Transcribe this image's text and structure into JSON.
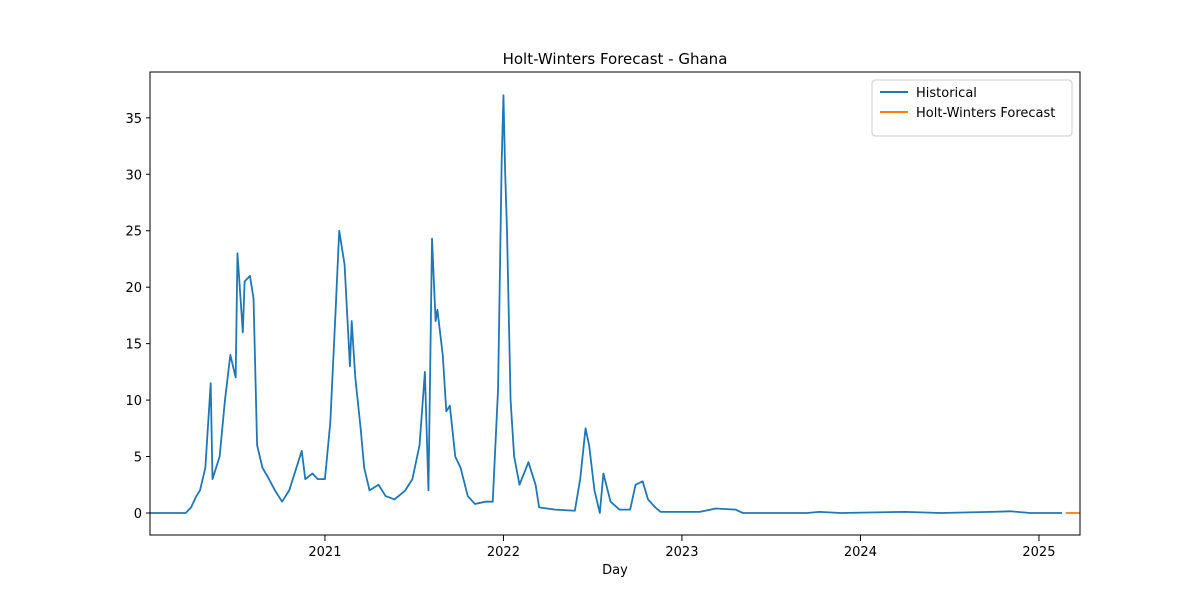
{
  "chart_data": {
    "type": "line",
    "title": "Holt-Winters Forecast - Ghana",
    "x_label": "Day",
    "xlim": [
      2020.02,
      2025.23
    ],
    "xticks": [
      2021,
      2022,
      2023,
      2024,
      2025
    ],
    "ylim": [
      -1.95,
      39.06
    ],
    "yticks": [
      0,
      5,
      10,
      15,
      20,
      25,
      30,
      35
    ],
    "legend": "upper right",
    "grid": false,
    "series": [
      {
        "name": "Historical",
        "color": "#1f77b4",
        "x": [
          2020.02,
          2020.22,
          2020.25,
          2020.28,
          2020.3,
          2020.33,
          2020.36,
          2020.37,
          2020.41,
          2020.44,
          2020.47,
          2020.5,
          2020.51,
          2020.54,
          2020.55,
          2020.58,
          2020.6,
          2020.62,
          2020.65,
          2020.68,
          2020.72,
          2020.76,
          2020.8,
          2020.85,
          2020.87,
          2020.89,
          2020.93,
          2020.96,
          2021.0,
          2021.03,
          2021.06,
          2021.08,
          2021.11,
          2021.14,
          2021.15,
          2021.17,
          2021.2,
          2021.22,
          2021.25,
          2021.3,
          2021.34,
          2021.39,
          2021.45,
          2021.49,
          2021.53,
          2021.56,
          2021.58,
          2021.6,
          2021.62,
          2021.63,
          2021.66,
          2021.68,
          2021.7,
          2021.73,
          2021.76,
          2021.8,
          2021.84,
          2021.9,
          2021.94,
          2021.97,
          2021.99,
          2022.0,
          2022.01,
          2022.02,
          2022.04,
          2022.06,
          2022.09,
          2022.14,
          2022.18,
          2022.2,
          2022.29,
          2022.4,
          2022.43,
          2022.46,
          2022.48,
          2022.51,
          2022.54,
          2022.56,
          2022.6,
          2022.65,
          2022.71,
          2022.74,
          2022.78,
          2022.81,
          2022.85,
          2022.88,
          2023.1,
          2023.19,
          2023.3,
          2023.34,
          2023.7,
          2023.77,
          2023.89,
          2024.25,
          2024.45,
          2024.73,
          2024.84,
          2024.95,
          2025.13
        ],
        "values": [
          0,
          0,
          0.5,
          1.5,
          2,
          4,
          11.5,
          3,
          5,
          10,
          14,
          12,
          23,
          16,
          20.5,
          21,
          19,
          6,
          4,
          3.2,
          2,
          1,
          2,
          4.5,
          5.5,
          3,
          3.5,
          3,
          3,
          8,
          18,
          25,
          22,
          13,
          17,
          12,
          7.5,
          4,
          2,
          2.5,
          1.5,
          1.2,
          2,
          3,
          6,
          12.5,
          2,
          24.3,
          17,
          18,
          14,
          9,
          9.5,
          5,
          4,
          1.5,
          0.8,
          1,
          1,
          11,
          31,
          37,
          30,
          25,
          10,
          5,
          2.5,
          4.5,
          2.5,
          0.5,
          0.3,
          0.2,
          3,
          7.5,
          6,
          2,
          0,
          3.5,
          1,
          0.3,
          0.3,
          2.5,
          2.8,
          1.2,
          0.5,
          0.1,
          0.1,
          0.4,
          0.3,
          0,
          0,
          0.1,
          0,
          0.1,
          0,
          0.1,
          0.15,
          0,
          0
        ]
      },
      {
        "name": "Holt-Winters Forecast",
        "color": "#ff7f0e",
        "x": [
          2025.15,
          2025.23
        ],
        "values": [
          0,
          0
        ]
      }
    ]
  }
}
